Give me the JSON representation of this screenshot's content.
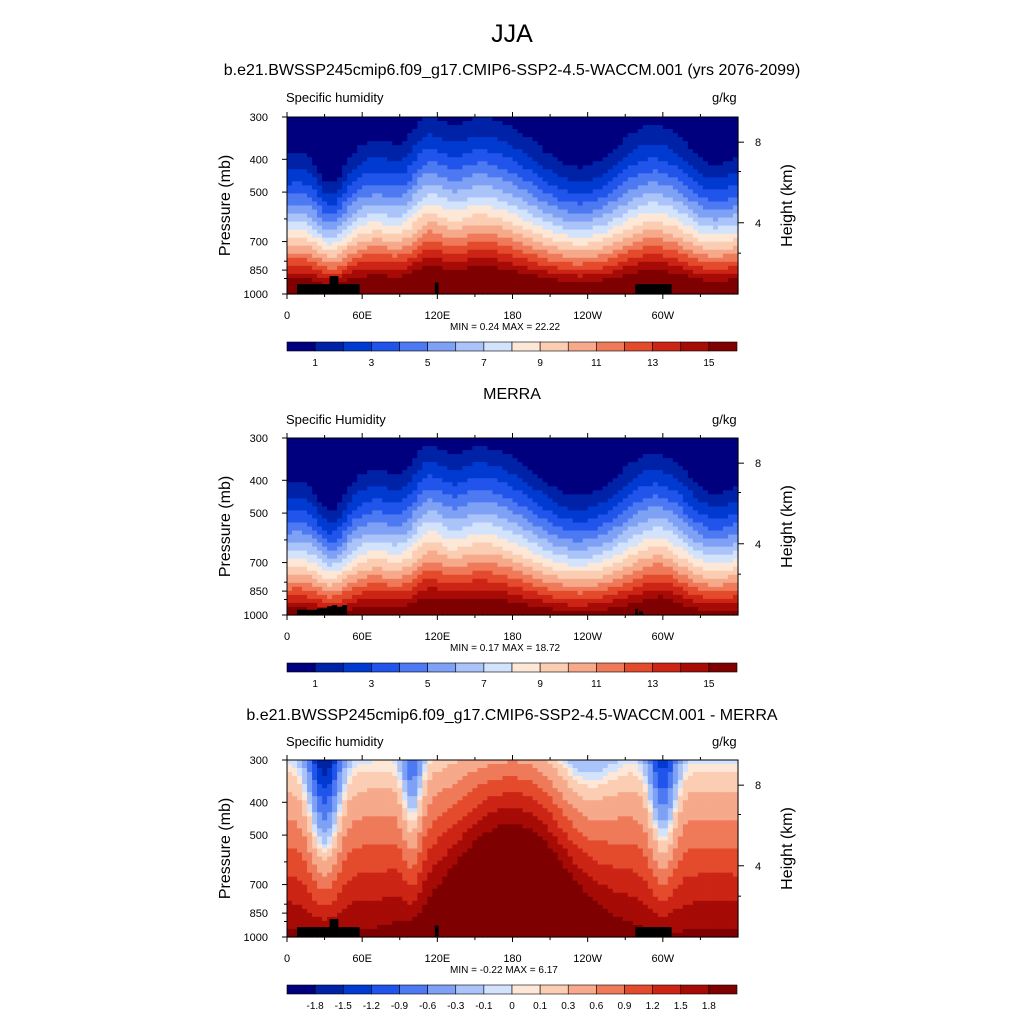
{
  "title": "JJA",
  "panels": [
    {
      "title": "b.e21.BWSSP245cmip6.f09_g17.CMIP6-SSP2-4.5-WACCM.001 (yrs 2076-2099)",
      "left_label": "Specific humidity",
      "right_label": "g/kg",
      "min_label": "MIN =",
      "min_value": "0.24",
      "max_label": "MAX =",
      "max_value": "22.22",
      "colorbar_labels": [
        "1",
        "3",
        "5",
        "7",
        "9",
        "11",
        "13",
        "15"
      ]
    },
    {
      "title": "MERRA",
      "left_label": "Specific Humidity",
      "right_label": "g/kg",
      "min_label": "MIN =",
      "min_value": "0.17",
      "max_label": "MAX =",
      "max_value": "18.72",
      "colorbar_labels": [
        "1",
        "3",
        "5",
        "7",
        "9",
        "11",
        "13",
        "15"
      ]
    },
    {
      "title": "b.e21.BWSSP245cmip6.f09_g17.CMIP6-SSP2-4.5-WACCM.001 - MERRA",
      "left_label": "Specific humidity",
      "right_label": "g/kg",
      "min_label": "MIN =",
      "min_value": "-0.22",
      "max_label": "MAX =",
      "max_value": "6.17",
      "colorbar_labels": [
        "-1.8",
        "-1.5",
        "-1.2",
        "-0.9",
        "-0.6",
        "-0.3",
        "-0.1",
        "0",
        "0.1",
        "0.3",
        "0.6",
        "0.9",
        "1.2",
        "1.5",
        "1.8"
      ]
    }
  ],
  "chart_data": {
    "type": "heatmap",
    "title": "JJA",
    "variable": "Specific humidity",
    "units": "g/kg",
    "ylabel": "Pressure (mb)",
    "ylabel_right": "Height (km)",
    "y_ticks": [
      "300",
      "400",
      "500",
      "700",
      "850",
      "1000"
    ],
    "y_tick_values": [
      300,
      400,
      500,
      700,
      850,
      1000
    ],
    "y_right_ticks": [
      "8",
      "4"
    ],
    "y_right_tick_values": [
      8,
      4
    ],
    "x_ticks": [
      "0",
      "60E",
      "120E",
      "180",
      "120W",
      "60W"
    ],
    "x_tick_values": [
      0,
      60,
      120,
      180,
      240,
      300
    ],
    "xlim": [
      0,
      360
    ],
    "ylim": [
      1000,
      300
    ],
    "colors": {
      "sequential": [
        "#00007f",
        "#0022a7",
        "#003ad0",
        "#2054ea",
        "#4d79f2",
        "#7ea1f5",
        "#aac4f9",
        "#d2e3fb",
        "#fde8d8",
        "#fbcdb2",
        "#f6a98b",
        "#ef7a5a",
        "#e44a2c",
        "#cc2415",
        "#a70b06",
        "#7f0000"
      ],
      "diverging": [
        "#00007f",
        "#0022a7",
        "#003ad0",
        "#2054ea",
        "#4d79f2",
        "#7ea1f5",
        "#aac4f9",
        "#d2e3fb",
        "#fde8d8",
        "#fbcdb2",
        "#f6a98b",
        "#ef7a5a",
        "#e44a2c",
        "#cc2415",
        "#a70b06",
        "#7f0000"
      ]
    },
    "series": [
      {
        "name": "b.e21.BWSSP245cmip6.f09_g17.CMIP6-SSP2-4.5-WACCM.001 (yrs 2076-2099)",
        "min": 0.24,
        "max": 22.22,
        "levels": [
          1,
          2,
          3,
          4,
          5,
          6,
          7,
          8,
          9,
          10,
          11,
          12,
          13,
          14,
          15
        ]
      },
      {
        "name": "MERRA",
        "min": 0.17,
        "max": 18.72,
        "levels": [
          1,
          2,
          3,
          4,
          5,
          6,
          7,
          8,
          9,
          10,
          11,
          12,
          13,
          14,
          15
        ]
      },
      {
        "name": "b.e21.BWSSP245cmip6.f09_g17.CMIP6-SSP2-4.5-WACCM.001 - MERRA",
        "min": -0.22,
        "max": 6.17,
        "levels": [
          -1.8,
          -1.5,
          -1.2,
          -0.9,
          -0.6,
          -0.3,
          -0.1,
          0,
          0.1,
          0.3,
          0.6,
          0.9,
          1.2,
          1.5,
          1.8
        ]
      }
    ]
  }
}
